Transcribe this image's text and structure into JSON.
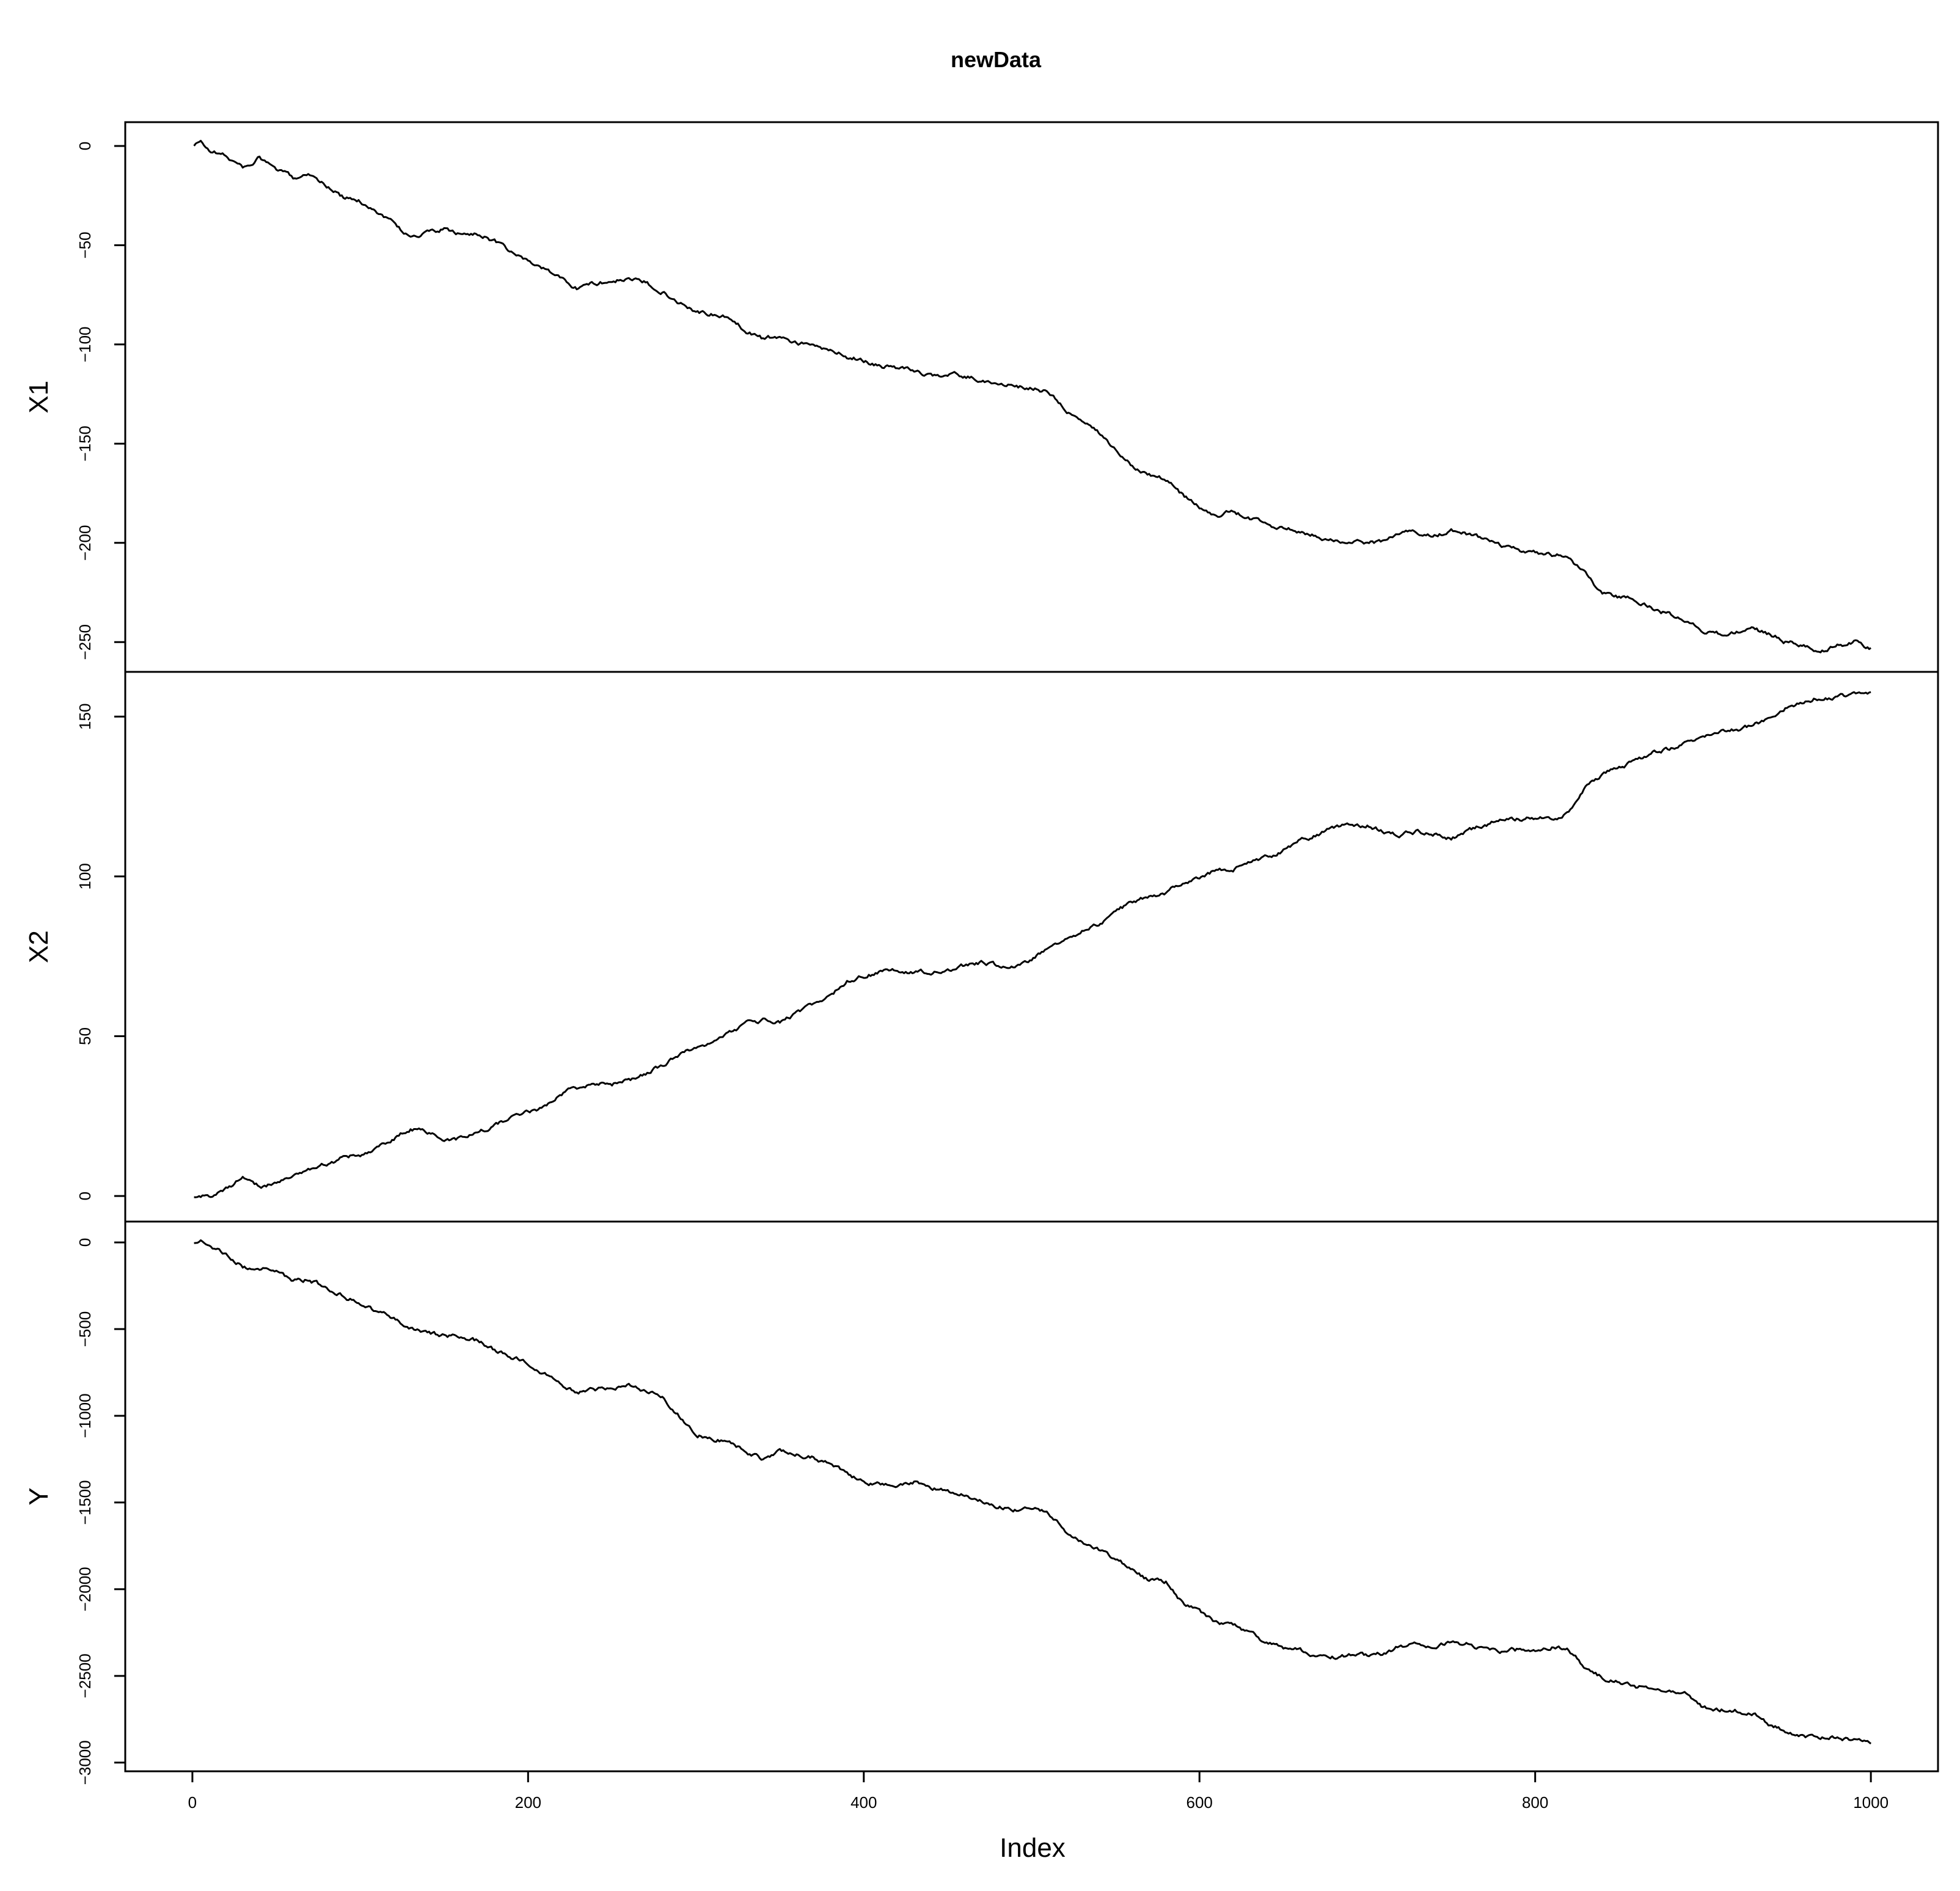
{
  "chart_data": {
    "type": "line",
    "title": "newData",
    "xlabel": "Index",
    "x_ticks": [
      0,
      200,
      400,
      600,
      800,
      1000
    ],
    "xlim": [
      -40,
      1040
    ],
    "n_points": 1000,
    "line_color": "#000000",
    "panels": [
      {
        "name": "X1",
        "ylabel": "X1",
        "ylim": [
          -265,
          12
        ],
        "y_ticks": [
          0,
          -50,
          -100,
          -150,
          -200,
          -250
        ],
        "anchors": [
          [
            1,
            0
          ],
          [
            5,
            2
          ],
          [
            10,
            -2
          ],
          [
            20,
            -5
          ],
          [
            30,
            -11
          ],
          [
            40,
            -6
          ],
          [
            50,
            -12
          ],
          [
            60,
            -16
          ],
          [
            70,
            -14
          ],
          [
            80,
            -20
          ],
          [
            90,
            -26
          ],
          [
            100,
            -28
          ],
          [
            110,
            -33
          ],
          [
            120,
            -39
          ],
          [
            130,
            -46
          ],
          [
            140,
            -44
          ],
          [
            150,
            -42
          ],
          [
            160,
            -45
          ],
          [
            170,
            -44
          ],
          [
            180,
            -48
          ],
          [
            190,
            -54
          ],
          [
            200,
            -58
          ],
          [
            210,
            -62
          ],
          [
            220,
            -67
          ],
          [
            230,
            -72
          ],
          [
            240,
            -69
          ],
          [
            250,
            -68
          ],
          [
            260,
            -67
          ],
          [
            270,
            -69
          ],
          [
            280,
            -73
          ],
          [
            290,
            -79
          ],
          [
            300,
            -83
          ],
          [
            310,
            -85
          ],
          [
            320,
            -87
          ],
          [
            330,
            -93
          ],
          [
            340,
            -97
          ],
          [
            350,
            -96
          ],
          [
            360,
            -99
          ],
          [
            370,
            -101
          ],
          [
            380,
            -103
          ],
          [
            390,
            -106
          ],
          [
            400,
            -108
          ],
          [
            410,
            -111
          ],
          [
            420,
            -112
          ],
          [
            430,
            -113
          ],
          [
            440,
            -116
          ],
          [
            450,
            -115
          ],
          [
            460,
            -116
          ],
          [
            470,
            -118
          ],
          [
            480,
            -120
          ],
          [
            490,
            -121
          ],
          [
            500,
            -122
          ],
          [
            510,
            -124
          ],
          [
            520,
            -133
          ],
          [
            530,
            -139
          ],
          [
            540,
            -145
          ],
          [
            550,
            -153
          ],
          [
            560,
            -161
          ],
          [
            570,
            -165
          ],
          [
            580,
            -168
          ],
          [
            590,
            -176
          ],
          [
            600,
            -182
          ],
          [
            610,
            -187
          ],
          [
            620,
            -184
          ],
          [
            630,
            -188
          ],
          [
            640,
            -190
          ],
          [
            650,
            -193
          ],
          [
            660,
            -194
          ],
          [
            670,
            -196
          ],
          [
            680,
            -199
          ],
          [
            690,
            -200
          ],
          [
            700,
            -200
          ],
          [
            710,
            -199
          ],
          [
            720,
            -195
          ],
          [
            730,
            -195
          ],
          [
            740,
            -196
          ],
          [
            750,
            -194
          ],
          [
            760,
            -196
          ],
          [
            770,
            -198
          ],
          [
            780,
            -202
          ],
          [
            790,
            -204
          ],
          [
            800,
            -205
          ],
          [
            810,
            -206
          ],
          [
            820,
            -207
          ],
          [
            830,
            -216
          ],
          [
            840,
            -225
          ],
          [
            850,
            -227
          ],
          [
            860,
            -229
          ],
          [
            870,
            -233
          ],
          [
            880,
            -236
          ],
          [
            890,
            -239
          ],
          [
            900,
            -244
          ],
          [
            910,
            -246
          ],
          [
            920,
            -245
          ],
          [
            930,
            -244
          ],
          [
            940,
            -246
          ],
          [
            950,
            -250
          ],
          [
            960,
            -252
          ],
          [
            970,
            -256
          ],
          [
            980,
            -252
          ],
          [
            990,
            -250
          ],
          [
            1000,
            -253
          ]
        ]
      },
      {
        "name": "X2",
        "ylabel": "X2",
        "ylim": [
          -8,
          164
        ],
        "y_ticks": [
          0,
          50,
          100,
          150
        ],
        "anchors": [
          [
            1,
            0
          ],
          [
            10,
            0
          ],
          [
            20,
            2
          ],
          [
            30,
            6
          ],
          [
            40,
            3
          ],
          [
            50,
            4
          ],
          [
            60,
            7
          ],
          [
            70,
            8
          ],
          [
            80,
            10
          ],
          [
            90,
            12
          ],
          [
            100,
            13
          ],
          [
            110,
            15
          ],
          [
            120,
            18
          ],
          [
            130,
            21
          ],
          [
            140,
            20
          ],
          [
            150,
            18
          ],
          [
            160,
            18
          ],
          [
            170,
            20
          ],
          [
            180,
            22
          ],
          [
            190,
            24
          ],
          [
            200,
            26
          ],
          [
            210,
            28
          ],
          [
            220,
            32
          ],
          [
            230,
            34
          ],
          [
            240,
            35
          ],
          [
            250,
            35
          ],
          [
            260,
            36
          ],
          [
            270,
            38
          ],
          [
            280,
            41
          ],
          [
            290,
            44
          ],
          [
            300,
            46
          ],
          [
            310,
            48
          ],
          [
            320,
            51
          ],
          [
            330,
            54
          ],
          [
            340,
            55
          ],
          [
            350,
            54
          ],
          [
            360,
            57
          ],
          [
            370,
            60
          ],
          [
            380,
            63
          ],
          [
            390,
            67
          ],
          [
            400,
            69
          ],
          [
            410,
            70
          ],
          [
            420,
            71
          ],
          [
            430,
            70
          ],
          [
            440,
            70
          ],
          [
            450,
            71
          ],
          [
            460,
            72
          ],
          [
            470,
            73
          ],
          [
            480,
            72
          ],
          [
            490,
            72
          ],
          [
            500,
            74
          ],
          [
            510,
            78
          ],
          [
            520,
            81
          ],
          [
            530,
            83
          ],
          [
            540,
            85
          ],
          [
            550,
            89
          ],
          [
            560,
            92
          ],
          [
            570,
            94
          ],
          [
            580,
            95
          ],
          [
            590,
            98
          ],
          [
            600,
            100
          ],
          [
            610,
            102
          ],
          [
            620,
            102
          ],
          [
            630,
            104
          ],
          [
            640,
            106
          ],
          [
            650,
            108
          ],
          [
            660,
            111
          ],
          [
            670,
            113
          ],
          [
            680,
            115
          ],
          [
            690,
            116
          ],
          [
            700,
            116
          ],
          [
            710,
            114
          ],
          [
            720,
            113
          ],
          [
            730,
            114
          ],
          [
            740,
            113
          ],
          [
            750,
            112
          ],
          [
            760,
            114
          ],
          [
            770,
            116
          ],
          [
            780,
            118
          ],
          [
            790,
            118
          ],
          [
            800,
            118
          ],
          [
            810,
            118
          ],
          [
            820,
            120
          ],
          [
            830,
            128
          ],
          [
            840,
            132
          ],
          [
            850,
            134
          ],
          [
            860,
            136
          ],
          [
            870,
            139
          ],
          [
            880,
            140
          ],
          [
            890,
            142
          ],
          [
            900,
            144
          ],
          [
            910,
            145
          ],
          [
            920,
            146
          ],
          [
            930,
            147
          ],
          [
            940,
            150
          ],
          [
            950,
            153
          ],
          [
            960,
            155
          ],
          [
            970,
            156
          ],
          [
            980,
            156
          ],
          [
            990,
            157
          ],
          [
            1000,
            157
          ]
        ]
      },
      {
        "name": "Y",
        "ylabel": "Y",
        "ylim": [
          -3050,
          120
        ],
        "y_ticks": [
          0,
          -500,
          -1000,
          -1500,
          -2000,
          -2500,
          -3000
        ],
        "anchors": [
          [
            1,
            0
          ],
          [
            5,
            10
          ],
          [
            10,
            -20
          ],
          [
            20,
            -60
          ],
          [
            30,
            -140
          ],
          [
            40,
            -150
          ],
          [
            50,
            -170
          ],
          [
            60,
            -230
          ],
          [
            70,
            -210
          ],
          [
            80,
            -270
          ],
          [
            90,
            -310
          ],
          [
            100,
            -350
          ],
          [
            110,
            -400
          ],
          [
            120,
            -440
          ],
          [
            130,
            -490
          ],
          [
            140,
            -520
          ],
          [
            150,
            -540
          ],
          [
            160,
            -550
          ],
          [
            170,
            -570
          ],
          [
            180,
            -620
          ],
          [
            190,
            -660
          ],
          [
            200,
            -700
          ],
          [
            210,
            -760
          ],
          [
            220,
            -830
          ],
          [
            230,
            -870
          ],
          [
            240,
            -850
          ],
          [
            250,
            -840
          ],
          [
            260,
            -820
          ],
          [
            270,
            -850
          ],
          [
            280,
            -900
          ],
          [
            290,
            -1000
          ],
          [
            300,
            -1110
          ],
          [
            310,
            -1130
          ],
          [
            320,
            -1150
          ],
          [
            330,
            -1210
          ],
          [
            340,
            -1250
          ],
          [
            350,
            -1200
          ],
          [
            360,
            -1220
          ],
          [
            370,
            -1240
          ],
          [
            380,
            -1280
          ],
          [
            390,
            -1330
          ],
          [
            400,
            -1380
          ],
          [
            410,
            -1400
          ],
          [
            420,
            -1410
          ],
          [
            430,
            -1380
          ],
          [
            440,
            -1410
          ],
          [
            450,
            -1440
          ],
          [
            460,
            -1460
          ],
          [
            470,
            -1480
          ],
          [
            480,
            -1520
          ],
          [
            490,
            -1540
          ],
          [
            500,
            -1530
          ],
          [
            510,
            -1560
          ],
          [
            520,
            -1660
          ],
          [
            530,
            -1720
          ],
          [
            540,
            -1770
          ],
          [
            550,
            -1830
          ],
          [
            560,
            -1880
          ],
          [
            570,
            -1950
          ],
          [
            580,
            -1960
          ],
          [
            590,
            -2080
          ],
          [
            600,
            -2130
          ],
          [
            610,
            -2190
          ],
          [
            620,
            -2200
          ],
          [
            630,
            -2260
          ],
          [
            640,
            -2310
          ],
          [
            650,
            -2340
          ],
          [
            660,
            -2350
          ],
          [
            670,
            -2380
          ],
          [
            680,
            -2390
          ],
          [
            690,
            -2380
          ],
          [
            700,
            -2380
          ],
          [
            710,
            -2370
          ],
          [
            720,
            -2330
          ],
          [
            730,
            -2320
          ],
          [
            740,
            -2330
          ],
          [
            750,
            -2310
          ],
          [
            760,
            -2320
          ],
          [
            770,
            -2350
          ],
          [
            780,
            -2360
          ],
          [
            790,
            -2350
          ],
          [
            800,
            -2350
          ],
          [
            810,
            -2330
          ],
          [
            820,
            -2350
          ],
          [
            830,
            -2450
          ],
          [
            840,
            -2510
          ],
          [
            850,
            -2540
          ],
          [
            860,
            -2560
          ],
          [
            870,
            -2560
          ],
          [
            880,
            -2580
          ],
          [
            890,
            -2600
          ],
          [
            900,
            -2680
          ],
          [
            910,
            -2690
          ],
          [
            920,
            -2700
          ],
          [
            930,
            -2720
          ],
          [
            940,
            -2780
          ],
          [
            950,
            -2820
          ],
          [
            960,
            -2850
          ],
          [
            970,
            -2860
          ],
          [
            980,
            -2850
          ],
          [
            990,
            -2870
          ],
          [
            1000,
            -2880
          ]
        ]
      }
    ]
  }
}
